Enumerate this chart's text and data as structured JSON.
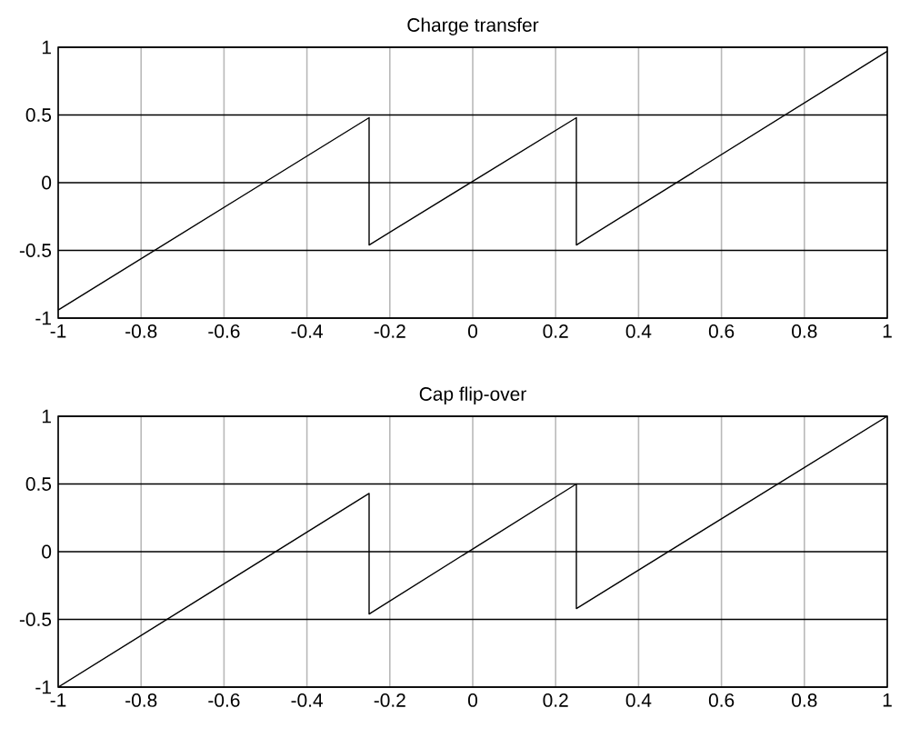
{
  "chart_data": [
    {
      "type": "line",
      "title": "Charge transfer",
      "xlim": [
        -1,
        1
      ],
      "ylim": [
        -1,
        1
      ],
      "xticks": [
        -1,
        -0.8,
        -0.6,
        -0.4,
        -0.2,
        0,
        0.2,
        0.4,
        0.6,
        0.8,
        1
      ],
      "yticks": [
        -1,
        -0.5,
        0,
        0.5,
        1
      ],
      "grid": true,
      "series": [
        {
          "color": "#000000",
          "x": [
            -1,
            -0.25,
            -0.25,
            0.25,
            0.25,
            1
          ],
          "values": [
            -0.94,
            0.48,
            -0.46,
            0.48,
            -0.46,
            0.97
          ]
        }
      ]
    },
    {
      "type": "line",
      "title": "Cap flip-over",
      "xlim": [
        -1,
        1
      ],
      "ylim": [
        -1,
        1
      ],
      "xticks": [
        -1,
        -0.8,
        -0.6,
        -0.4,
        -0.2,
        0,
        0.2,
        0.4,
        0.6,
        0.8,
        1
      ],
      "yticks": [
        -1,
        -0.5,
        0,
        0.5,
        1
      ],
      "grid": true,
      "series": [
        {
          "color": "#000000",
          "x": [
            -1,
            -0.25,
            -0.25,
            0.25,
            0.25,
            1
          ],
          "values": [
            -1,
            0.43,
            -0.46,
            0.5,
            -0.42,
            1
          ]
        }
      ]
    }
  ]
}
